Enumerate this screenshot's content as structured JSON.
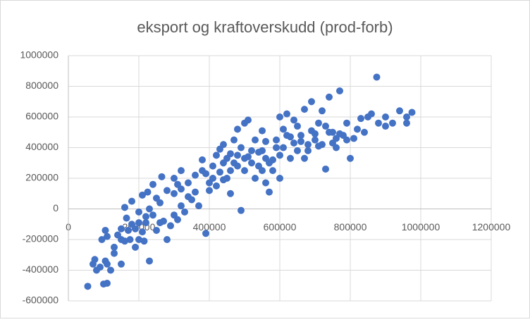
{
  "chart_data": {
    "type": "scatter",
    "title": "eksport og kraftoverskudd (prod-forb)",
    "color": "#4472c4",
    "grid": true,
    "xlim": [
      0,
      1200000
    ],
    "ylim": [
      -600000,
      1000000
    ],
    "xticks": [
      0,
      200000,
      400000,
      600000,
      800000,
      1000000,
      1200000
    ],
    "yticks": [
      -600000,
      -400000,
      -200000,
      0,
      200000,
      400000,
      600000,
      800000,
      1000000
    ],
    "x": [
      55000,
      70000,
      75000,
      80000,
      90000,
      100000,
      110000,
      105000,
      110000,
      120000,
      95000,
      105000,
      110000,
      130000,
      130000,
      150000,
      140000,
      150000,
      160000,
      170000,
      160000,
      180000,
      180000,
      190000,
      200000,
      210000,
      215000,
      230000,
      220000,
      200000,
      210000,
      225000,
      240000,
      250000,
      260000,
      230000,
      250000,
      265000,
      270000,
      280000,
      290000,
      300000,
      310000,
      320000,
      330000,
      300000,
      310000,
      320000,
      340000,
      350000,
      360000,
      370000,
      380000,
      390000,
      400000,
      410000,
      420000,
      430000,
      440000,
      450000,
      460000,
      470000,
      480000,
      490000,
      480000,
      500000,
      500000,
      510000,
      520000,
      530000,
      540000,
      550000,
      560000,
      550000,
      570000,
      560000,
      580000,
      590000,
      600000,
      600000,
      610000,
      620000,
      630000,
      640000,
      650000,
      660000,
      670000,
      680000,
      690000,
      700000,
      710000,
      720000,
      730000,
      740000,
      750000,
      760000,
      770000,
      780000,
      790000,
      800000,
      810000,
      820000,
      830000,
      840000,
      850000,
      860000,
      875000,
      880000,
      900000,
      900000,
      920000,
      940000,
      960000,
      975000,
      960000,
      760000,
      740000,
      720000,
      700000,
      680000,
      660000,
      640000,
      620000,
      600000,
      580000,
      560000,
      540000,
      520000,
      500000,
      480000,
      460000,
      440000,
      420000,
      400000,
      380000,
      360000,
      340000,
      320000,
      300000,
      280000,
      260000,
      240000,
      220000,
      200000,
      190000,
      175000,
      165000,
      150000,
      430000,
      450000,
      470000,
      490000,
      510000,
      530000,
      550000,
      570000,
      590000,
      610000,
      630000,
      650000,
      670000,
      690000,
      710000,
      730000,
      750000,
      770000,
      790000,
      440000,
      460000,
      410000,
      390000
    ],
    "values": [
      -505000,
      -360000,
      -330000,
      -400000,
      -380000,
      -490000,
      -485000,
      -340000,
      -360000,
      -400000,
      -200000,
      -140000,
      -180000,
      -250000,
      -290000,
      -360000,
      -170000,
      -130000,
      -210000,
      -140000,
      10000,
      -100000,
      50000,
      -250000,
      -200000,
      -150000,
      -210000,
      -340000,
      -90000,
      -20000,
      90000,
      110000,
      -40000,
      -140000,
      -90000,
      0,
      70000,
      210000,
      -80000,
      -200000,
      -110000,
      -40000,
      -70000,
      20000,
      -20000,
      100000,
      160000,
      250000,
      80000,
      60000,
      110000,
      20000,
      250000,
      -160000,
      170000,
      280000,
      350000,
      390000,
      300000,
      200000,
      100000,
      450000,
      520000,
      -10000,
      350000,
      560000,
      250000,
      580000,
      300000,
      450000,
      370000,
      510000,
      440000,
      250000,
      110000,
      170000,
      320000,
      400000,
      600000,
      200000,
      520000,
      620000,
      330000,
      430000,
      540000,
      480000,
      650000,
      380000,
      700000,
      450000,
      560000,
      420000,
      260000,
      730000,
      500000,
      400000,
      770000,
      480000,
      560000,
      330000,
      460000,
      520000,
      590000,
      500000,
      600000,
      620000,
      860000,
      560000,
      540000,
      600000,
      560000,
      640000,
      600000,
      630000,
      560000,
      460000,
      500000,
      640000,
      490000,
      420000,
      440000,
      580000,
      480000,
      350000,
      250000,
      330000,
      280000,
      380000,
      330000,
      280000,
      250000,
      190000,
      150000,
      120000,
      320000,
      220000,
      170000,
      130000,
      200000,
      120000,
      40000,
      160000,
      -50000,
      -90000,
      -130000,
      -200000,
      -60000,
      -200000,
      240000,
      330000,
      300000,
      400000,
      340000,
      200000,
      380000,
      300000,
      450000,
      400000,
      470000,
      380000,
      330000,
      510000,
      410000,
      540000,
      430000,
      490000,
      450000,
      420000,
      360000,
      200000,
      230000
    ]
  }
}
